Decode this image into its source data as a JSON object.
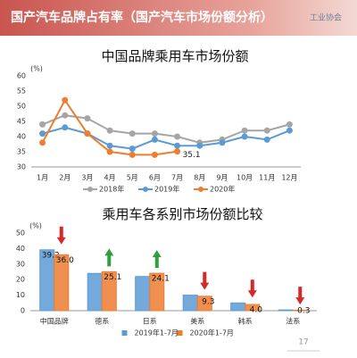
{
  "header": {
    "title": "国产汽车品牌占有率（国产汽车市场份额分析）",
    "logo": "工业协会"
  },
  "page_number": "17",
  "chart_data": [
    {
      "type": "line",
      "title": "中国品牌乘用车市场份额",
      "y_label": "(%)",
      "categories": [
        "1月",
        "2月",
        "3月",
        "4月",
        "5月",
        "6月",
        "7月",
        "8月",
        "9月",
        "10月",
        "11月",
        "12月"
      ],
      "series": [
        {
          "name": "2018年",
          "color": "#a5a5a5",
          "values": [
            44,
            47,
            46,
            42,
            41,
            41,
            40,
            38,
            39,
            42,
            42,
            44
          ]
        },
        {
          "name": "2019年",
          "color": "#5b9bd5",
          "values": [
            41,
            43,
            41,
            37,
            36,
            39,
            37,
            37,
            38,
            40,
            39,
            42
          ]
        },
        {
          "name": "2020年",
          "color": "#ed7d31",
          "values": [
            38,
            52,
            41,
            35,
            34,
            34,
            35.1,
            null,
            null,
            null,
            null,
            null
          ],
          "label_last": true
        }
      ],
      "ylim": [
        30,
        60
      ],
      "yticks": [
        30,
        35,
        40,
        45,
        50,
        55,
        60
      ],
      "grid": false
    },
    {
      "type": "bar",
      "title": "乘用车各系别市场份额比较",
      "y_label": "(%)",
      "categories": [
        "中国品牌",
        "德系",
        "日系",
        "美系",
        "韩系",
        "法系"
      ],
      "series": [
        {
          "name": "2019年1-7月",
          "color": "#5b9bd5",
          "values": [
            39.2,
            24,
            22,
            10,
            5,
            0.5
          ],
          "value_labels": [
            "39.2",
            null,
            null,
            null,
            null,
            null
          ]
        },
        {
          "name": "2020年1-7月",
          "color": "#ed7d31",
          "values": [
            36.0,
            25.1,
            24.1,
            9.3,
            4.0,
            0.3
          ],
          "value_labels": [
            "36.0",
            "25.1",
            "24.1",
            "9.3",
            "4.0",
            "0.3"
          ]
        }
      ],
      "ylim": [
        0,
        50
      ],
      "yticks": [
        0,
        10,
        20,
        30,
        40,
        50
      ],
      "grid": false,
      "change_arrows": true
    }
  ]
}
